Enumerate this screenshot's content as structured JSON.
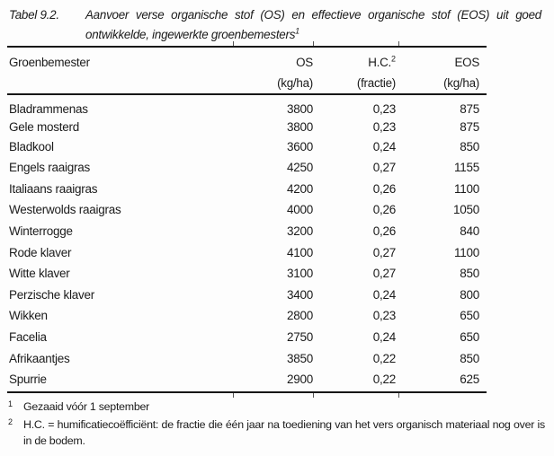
{
  "colors": {
    "background": "#fdfdfd",
    "text": "#1b1b1b",
    "rule": "#161616"
  },
  "title": {
    "label": "Tabel 9.2.",
    "caption_line1": "Aanvoer verse organische stof (OS) en effectieve organische stof (EOS) uit goed",
    "caption_line2": "ontwikkelde, ingewerkte groenbemesters",
    "caption_footnote_marker": "1"
  },
  "table": {
    "columns": {
      "name": "Groenbemester",
      "os_label": "OS",
      "os_unit": "(kg/ha)",
      "hc_label": "H.C.",
      "hc_sup": "2",
      "hc_unit": "(fractie)",
      "eos_label": "EOS",
      "eos_unit": "(kg/ha)"
    },
    "rows": [
      {
        "name": "Bladrammenas",
        "os": "3800",
        "hc": "0,23",
        "eos": "875"
      },
      {
        "name": "Gele mosterd",
        "os": "3800",
        "hc": "0,23",
        "eos": "875"
      },
      {
        "name": "Bladkool",
        "os": "3600",
        "hc": "0,24",
        "eos": "850"
      },
      {
        "name": "Engels raaigras",
        "os": "4250",
        "hc": "0,27",
        "eos": "1155"
      },
      {
        "name": "Italiaans raaigras",
        "os": "4200",
        "hc": "0,26",
        "eos": "1100"
      },
      {
        "name": "Westerwolds raaigras",
        "os": "4000",
        "hc": "0,26",
        "eos": "1050"
      },
      {
        "name": "Winterrogge",
        "os": "3200",
        "hc": "0,26",
        "eos": "840"
      },
      {
        "name": "Rode klaver",
        "os": "4100",
        "hc": "0,27",
        "eos": "1100"
      },
      {
        "name": "Witte klaver",
        "os": "3100",
        "hc": "0,27",
        "eos": "850"
      },
      {
        "name": "Perzische klaver",
        "os": "3400",
        "hc": "0,24",
        "eos": "800"
      },
      {
        "name": "Wikken",
        "os": "2800",
        "hc": "0,23",
        "eos": "650"
      },
      {
        "name": "Facelia",
        "os": "2750",
        "hc": "0,24",
        "eos": "650"
      },
      {
        "name": "Afrikaantjes",
        "os": "3850",
        "hc": "0,22",
        "eos": "850"
      },
      {
        "name": "Spurrie",
        "os": "2900",
        "hc": "0,22",
        "eos": "625"
      }
    ]
  },
  "footnotes": [
    {
      "marker": "1",
      "text": "Gezaaid vóór 1 september"
    },
    {
      "marker": "2",
      "text": "H.C. = humificatiecoëfficiënt: de fractie die één jaar na toediening van het vers organisch materiaal nog over is in de bodem."
    }
  ]
}
